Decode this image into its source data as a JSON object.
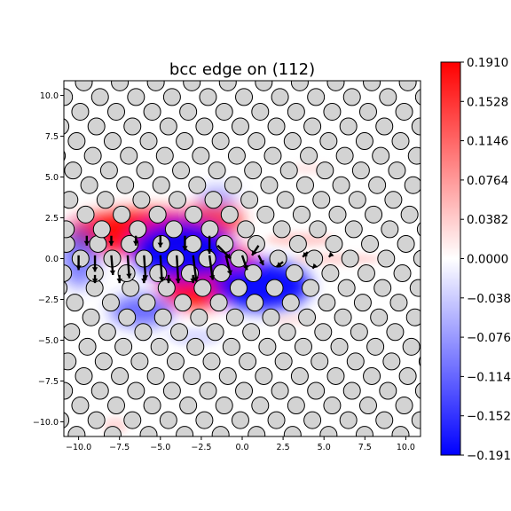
{
  "chart_data": {
    "type": "heatmap",
    "title": "bcc edge on (112)",
    "xlabel": "",
    "ylabel": "",
    "xlim": [
      -10.9,
      10.9
    ],
    "ylim": [
      -10.9,
      10.9
    ],
    "x_ticks": [
      -10.0,
      -7.5,
      -5.0,
      -2.5,
      0.0,
      2.5,
      5.0,
      7.5,
      10.0
    ],
    "y_ticks": [
      -10.0,
      -7.5,
      -5.0,
      -2.5,
      0.0,
      2.5,
      5.0,
      7.5,
      10.0
    ],
    "x_tick_labels": [
      "−10.0",
      "−7.5",
      "−5.0",
      "−2.5",
      "0.0",
      "2.5",
      "5.0",
      "7.5",
      "10.0"
    ],
    "y_tick_labels": [
      "−10.0",
      "−7.5",
      "−5.0",
      "−2.5",
      "0.0",
      "2.5",
      "5.0",
      "7.5",
      "10.0"
    ],
    "colormap": "bwr",
    "colorbar": {
      "min": -0.191,
      "max": 0.191,
      "ticks": [
        0.191,
        0.1528,
        0.1146,
        0.0764,
        0.0382,
        0.0,
        -0.0382,
        -0.0764,
        -0.1146,
        -0.1528,
        -0.191
      ],
      "tick_labels": [
        "0.1910",
        "0.1528",
        "0.1146",
        "0.0764",
        "0.0382",
        "0.0000",
        "−0.0382",
        "−0.0764",
        "−0.1146",
        "−0.1528",
        "−0.1910"
      ],
      "colors": {
        "max": "#ff0000",
        "mid": "#ffffff",
        "min": "#0000ff"
      }
    },
    "strain_lobes": [
      {
        "name": "upper red",
        "x": -4.5,
        "y": 1.5,
        "value": 0.19
      },
      {
        "name": "lower red",
        "x": -2.5,
        "y": -1.5,
        "value": 0.19
      },
      {
        "name": "upper blue",
        "x": -3.0,
        "y": 1.2,
        "value": -0.19
      },
      {
        "name": "lower blue",
        "x": 2.0,
        "y": -1.8,
        "value": -0.19
      }
    ],
    "atoms": {
      "row_spacing": 0.9,
      "column_spacing": 2.2,
      "marker_color": "#d3d3d3",
      "edge_color": "#000000"
    },
    "displacement_arrows": [
      {
        "x": -10.0,
        "y": 0.2,
        "dx": 0.0,
        "dy": -0.9
      },
      {
        "x": -9.0,
        "y": 0.2,
        "dx": 0.0,
        "dy": -1.0
      },
      {
        "x": -8.0,
        "y": 0.2,
        "dx": 0.1,
        "dy": -1.2
      },
      {
        "x": -7.0,
        "y": 0.2,
        "dx": 0.1,
        "dy": -1.4
      },
      {
        "x": -6.0,
        "y": 0.2,
        "dx": 0.1,
        "dy": -1.5
      },
      {
        "x": -5.0,
        "y": 0.2,
        "dx": 0.1,
        "dy": -1.6
      },
      {
        "x": -4.0,
        "y": 0.2,
        "dx": 0.1,
        "dy": -1.7
      },
      {
        "x": -3.0,
        "y": 0.2,
        "dx": 0.2,
        "dy": -1.6
      },
      {
        "x": -2.0,
        "y": 0.2,
        "dx": 0.2,
        "dy": -1.5
      },
      {
        "x": -1.0,
        "y": 0.2,
        "dx": 0.3,
        "dy": -1.2
      },
      {
        "x": 0.0,
        "y": 0.2,
        "dx": 0.3,
        "dy": -0.9
      },
      {
        "x": 1.0,
        "y": 0.2,
        "dx": 0.3,
        "dy": -0.6
      },
      {
        "x": -2.0,
        "y": 1.4,
        "dx": 0.0,
        "dy": -1.1
      },
      {
        "x": -3.5,
        "y": 1.4,
        "dx": 0.0,
        "dy": -0.9
      },
      {
        "x": -5.0,
        "y": 1.4,
        "dx": 0.0,
        "dy": -0.7
      },
      {
        "x": -6.5,
        "y": 1.4,
        "dx": 0.0,
        "dy": -0.6
      },
      {
        "x": -8.0,
        "y": 1.4,
        "dx": 0.0,
        "dy": -0.6
      },
      {
        "x": -9.5,
        "y": 1.4,
        "dx": 0.0,
        "dy": -0.6
      },
      {
        "x": -9.0,
        "y": -1.0,
        "dx": 0.0,
        "dy": -0.5
      },
      {
        "x": -7.5,
        "y": -1.0,
        "dx": 0.0,
        "dy": -0.5
      },
      {
        "x": -6.0,
        "y": -1.0,
        "dx": 0.0,
        "dy": -0.5
      },
      {
        "x": -4.5,
        "y": -1.0,
        "dx": 0.0,
        "dy": -0.5
      },
      {
        "x": -3.0,
        "y": -1.0,
        "dx": 0.0,
        "dy": -0.5
      },
      {
        "x": -1.5,
        "y": 0.8,
        "dx": 0.8,
        "dy": -0.8
      },
      {
        "x": 1.0,
        "y": 0.8,
        "dx": -0.4,
        "dy": -0.6
      },
      {
        "x": 4.0,
        "y": 0.4,
        "dx": -0.3,
        "dy": -0.3
      },
      {
        "x": 5.5,
        "y": 0.3,
        "dx": -0.2,
        "dy": -0.2
      },
      {
        "x": 2.5,
        "y": -0.2,
        "dx": -0.4,
        "dy": -0.3
      },
      {
        "x": 4.5,
        "y": -0.4,
        "dx": -0.2,
        "dy": -0.2
      }
    ]
  }
}
